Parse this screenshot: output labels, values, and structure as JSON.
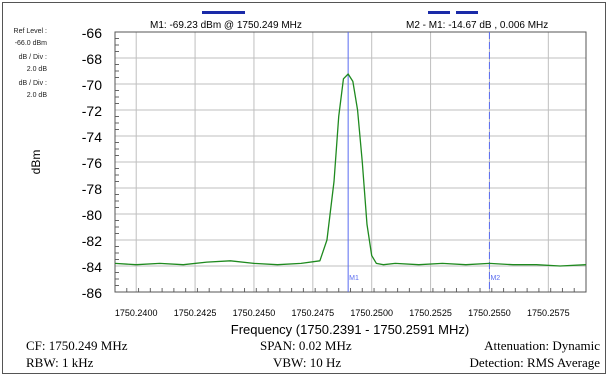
{
  "settings": {
    "ref_level_label": "Ref Level :",
    "ref_level_value": "-66.0  dBm",
    "db_div_label_1": "dB / Div :",
    "db_div_value_1": "2.0 dB",
    "db_div_label_2": "dB / Div :",
    "db_div_value_2": "2.0    dB"
  },
  "footer": {
    "cf": "CF: 1750.249 MHz",
    "span": "SPAN: 0.02 MHz",
    "attenuation": "Attenuation: Dynamic",
    "rbw": "RBW: 1 kHz",
    "vbw": "VBW: 10 Hz",
    "detection": "Detection: RMS Average"
  },
  "colors": {
    "trace": "#1f8a1f",
    "marker": "#5a6cf0",
    "marker_bar": "#1a2aa8",
    "grid": "#bfbfbf"
  },
  "chart_data": {
    "type": "line",
    "title": "",
    "xlabel": "Frequency (1750.2391 - 1750.2591 MHz)",
    "ylabel": "dBm",
    "xlim": [
      1750.2391,
      1750.2591
    ],
    "ylim": [
      -86,
      -66
    ],
    "x_ticks": [
      1750.24,
      1750.2425,
      1750.245,
      1750.2475,
      1750.25,
      1750.2525,
      1750.255,
      1750.2575
    ],
    "x_tick_labels": [
      "1750.2400",
      "1750.2425",
      "1750.2450",
      "1750.2475",
      "1750.2500",
      "1750.2525",
      "1750.2550",
      "1750.2575"
    ],
    "y_ticks": [
      -66,
      -68,
      -70,
      -72,
      -74,
      -76,
      -78,
      -80,
      -82,
      -84,
      -86
    ],
    "y_tick_labels": [
      "-66",
      "-68",
      "-70",
      "-72",
      "-74",
      "-76",
      "-78",
      "-80",
      "-82",
      "-84",
      "-86"
    ],
    "grid": true,
    "series": [
      {
        "x": [
          1750.2391,
          1750.24,
          1750.241,
          1750.242,
          1750.243,
          1750.244,
          1750.245,
          1750.246,
          1750.247,
          1750.2478,
          1750.2481,
          1750.2484,
          1750.2486,
          1750.2488,
          1750.249,
          1750.2492,
          1750.2494,
          1750.2496,
          1750.2498,
          1750.25,
          1750.2502,
          1750.2505,
          1750.251,
          1750.252,
          1750.253,
          1750.254,
          1750.255,
          1750.256,
          1750.257,
          1750.258,
          1750.2591
        ],
        "y": [
          -83.8,
          -83.9,
          -83.8,
          -83.9,
          -83.7,
          -83.6,
          -83.8,
          -83.9,
          -83.8,
          -83.6,
          -82.0,
          -77.5,
          -72.5,
          -69.6,
          -69.23,
          -69.8,
          -72.0,
          -76.0,
          -80.8,
          -83.2,
          -83.8,
          -83.9,
          -83.8,
          -83.9,
          -83.8,
          -83.9,
          -83.8,
          -83.9,
          -83.9,
          -84.0,
          -83.9
        ]
      }
    ],
    "markers": [
      {
        "name": "M1",
        "x": 1750.249,
        "label": "M1",
        "readout": "M1: -69.23 dBm @ 1750.249 MHz"
      },
      {
        "name": "M2",
        "x": 1750.255,
        "label": "M2",
        "readout": "M2 - M1: -14.67 dB , 0.006 MHz"
      }
    ]
  }
}
